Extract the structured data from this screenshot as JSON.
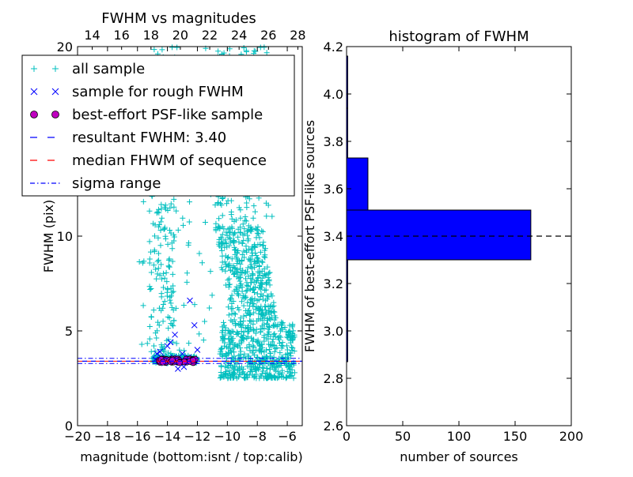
{
  "chart_data": [
    {
      "type": "scatter",
      "title": "FWHM vs magnitudes",
      "xlabel": "magnitude (bottom:isnt / top:calib)",
      "ylabel": "FWHM (pix)",
      "xlim": [
        -20,
        -5
      ],
      "ylim": [
        0,
        20
      ],
      "top_xlim": [
        13.0,
        28.3
      ],
      "x_ticks": [
        "−20",
        "−18",
        "−16",
        "−14",
        "−12",
        "−10",
        "−8",
        "−6"
      ],
      "x_tick_values": [
        -20,
        -18,
        -16,
        -14,
        -12,
        -10,
        -8,
        -6
      ],
      "top_x_ticks": [
        "14",
        "16",
        "18",
        "20",
        "22",
        "24",
        "26",
        "28"
      ],
      "top_x_tick_values": [
        14,
        16,
        18,
        20,
        22,
        24,
        26,
        28
      ],
      "y_ticks": [
        "0",
        "5",
        "10"
      ],
      "y_tick_values": [
        0,
        5,
        10
      ],
      "top_left_y_tick": "20",
      "legend": {
        "position": "top-left",
        "entries": [
          {
            "label": "all sample",
            "marker": "+",
            "color": "#00bfbf"
          },
          {
            "label": "sample for rough FWHM",
            "marker": "x",
            "color": "#0000ff"
          },
          {
            "label": "best-effort PSF-like sample",
            "marker": "o",
            "color": "#bf00bf"
          },
          {
            "label": "resultant FWHM: 3.40",
            "marker": "dashed",
            "color": "#0000ff"
          },
          {
            "label": "median FHWM of sequence",
            "marker": "dashed",
            "color": "#ff0000"
          },
          {
            "label": "sigma range",
            "marker": "dashdot",
            "color": "#0000ff"
          }
        ]
      },
      "lines": {
        "resultant_fwhm": 3.4,
        "median_fwhm": 3.4,
        "sigma_range": [
          3.28,
          3.55
        ]
      },
      "series": [
        {
          "name": "all sample",
          "color": "#00bfbf",
          "marker": "+",
          "clusters": [
            {
              "x_range": [
                -15.0,
                -12.0
              ],
              "y_range": [
                3.3,
                3.7
              ],
              "n": 200
            },
            {
              "x_range": [
                -15.2,
                -13.5
              ],
              "y_range": [
                3.5,
                20
              ],
              "n": 220
            },
            {
              "x_range": [
                -10.5,
                -5.5
              ],
              "y_range": [
                2.5,
                5.5
              ],
              "n": 500
            },
            {
              "x_range": [
                -10.0,
                -6.5
              ],
              "y_range": [
                5.5,
                10.5
              ],
              "n": 380
            },
            {
              "x_range": [
                -11.0,
                -7.0
              ],
              "y_range": [
                10.5,
                20
              ],
              "n": 240
            },
            {
              "x_range": [
                -16.0,
                -11.0
              ],
              "y_range": [
                3.5,
                20
              ],
              "n": 90
            }
          ]
        },
        {
          "name": "sample for rough FWHM",
          "color": "#0000ff",
          "marker": "x",
          "points": [
            [
              -14.8,
              3.5
            ],
            [
              -14.6,
              3.4
            ],
            [
              -14.4,
              3.6
            ],
            [
              -14.2,
              3.3
            ],
            [
              -14.0,
              3.5
            ],
            [
              -13.8,
              3.4
            ],
            [
              -13.6,
              3.6
            ],
            [
              -13.4,
              3.5
            ],
            [
              -13.2,
              3.3
            ],
            [
              -13.0,
              3.5
            ],
            [
              -12.8,
              3.4
            ],
            [
              -12.6,
              3.6
            ],
            [
              -12.4,
              3.5
            ],
            [
              -12.2,
              3.4
            ],
            [
              -14.7,
              3.8
            ],
            [
              -14.5,
              3.9
            ],
            [
              -14.0,
              4.2
            ],
            [
              -13.8,
              4.4
            ],
            [
              -13.5,
              4.8
            ],
            [
              -13.0,
              3.8
            ],
            [
              -12.5,
              6.6
            ],
            [
              -12.2,
              5.3
            ],
            [
              -12.0,
              4.0
            ],
            [
              -13.3,
              3.0
            ],
            [
              -12.9,
              3.1
            ]
          ]
        },
        {
          "name": "best-effort PSF-like sample",
          "color": "#bf00bf",
          "marker": "o",
          "x_range": [
            -14.6,
            -12.1
          ],
          "y_range": [
            3.32,
            3.52
          ],
          "n": 60
        }
      ]
    },
    {
      "type": "bar",
      "orientation": "horizontal",
      "title": "histogram of FWHM",
      "xlabel": "number of sources",
      "ylabel": "FWHM of best-effort PSF-like sources",
      "xlim": [
        0,
        200
      ],
      "ylim": [
        2.6,
        4.2
      ],
      "x_ticks": [
        "0",
        "50",
        "100",
        "150",
        "200"
      ],
      "x_tick_values": [
        0,
        50,
        100,
        150,
        200
      ],
      "y_ticks": [
        "2.6",
        "2.8",
        "3.0",
        "3.2",
        "3.4",
        "3.6",
        "3.8",
        "4.0",
        "4.2"
      ],
      "y_tick_values": [
        2.6,
        2.8,
        3.0,
        3.2,
        3.4,
        3.6,
        3.8,
        4.0,
        4.2
      ],
      "bins": [
        {
          "y0": 2.87,
          "y1": 3.3,
          "count": 1
        },
        {
          "y0": 3.3,
          "y1": 3.51,
          "count": 164
        },
        {
          "y0": 3.51,
          "y1": 3.73,
          "count": 19
        },
        {
          "y0": 3.73,
          "y1": 3.94,
          "count": 1
        },
        {
          "y0": 3.94,
          "y1": 4.16,
          "count": 1
        }
      ],
      "bar_color": "#0000ff",
      "reference_line": 3.4
    }
  ]
}
